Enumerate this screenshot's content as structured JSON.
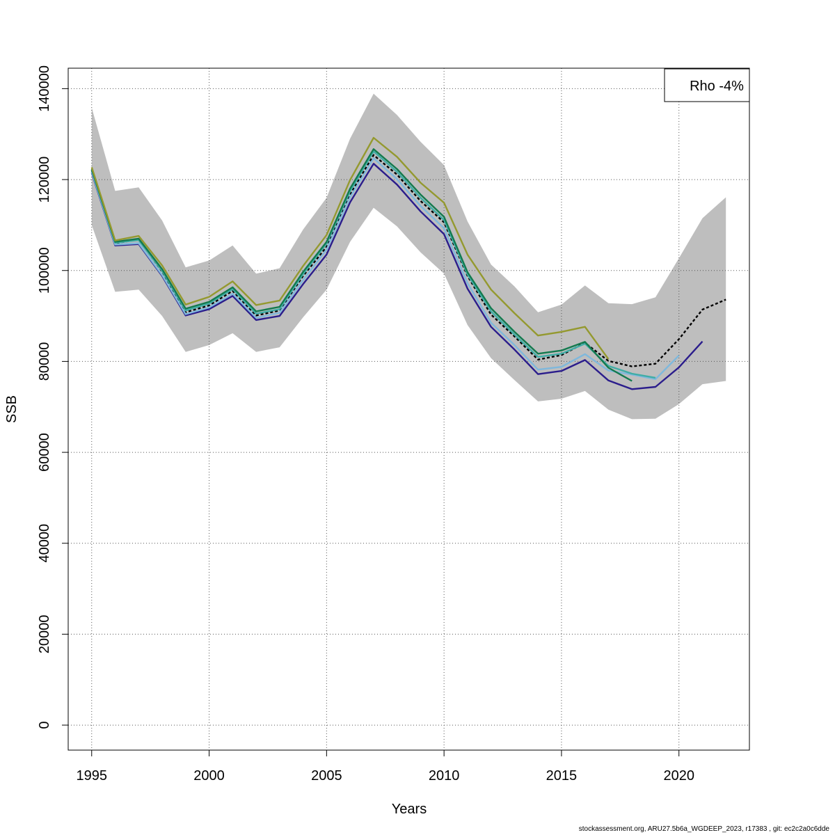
{
  "footer": "stockassessment.org, ARU27.5b6a_WGDEEP_2023, r17383 , git: ec2c2a0c6dde",
  "chart_data": {
    "type": "line",
    "xlabel": "Years",
    "ylabel": "SSB",
    "xlim": [
      1994,
      2023
    ],
    "ylim": [
      -5500,
      144500
    ],
    "x_ticks": [
      1995,
      2000,
      2005,
      2010,
      2015,
      2020
    ],
    "y_ticks": [
      0,
      20000,
      40000,
      60000,
      80000,
      100000,
      120000,
      140000
    ],
    "grid": true,
    "legend": {
      "position": "top-right",
      "text": "Rho -4%"
    },
    "band": {
      "x": [
        1995,
        1996,
        1997,
        1998,
        1999,
        2000,
        2001,
        2002,
        2003,
        2004,
        2005,
        2006,
        2007,
        2008,
        2009,
        2010,
        2011,
        2012,
        2013,
        2014,
        2015,
        2016,
        2017,
        2018,
        2019,
        2020,
        2021,
        2022
      ],
      "upper": [
        135800,
        117500,
        118300,
        111000,
        100700,
        102200,
        105500,
        99300,
        100500,
        109000,
        116000,
        129000,
        138900,
        134200,
        128300,
        123200,
        110800,
        101300,
        96500,
        90800,
        92500,
        96700,
        92800,
        92600,
        94100,
        102700,
        111500,
        116100
      ],
      "lower": [
        110000,
        95300,
        95800,
        90000,
        82100,
        83600,
        86200,
        82100,
        83100,
        89700,
        95800,
        106300,
        113800,
        109700,
        104000,
        99300,
        88000,
        80700,
        75900,
        71200,
        71800,
        73500,
        69400,
        67300,
        67400,
        70600,
        75000,
        75700
      ],
      "color": "#bebebe"
    },
    "series": [
      {
        "color": "#000000",
        "dashed": true,
        "x": [
          1995,
          1996,
          1997,
          1998,
          1999,
          2000,
          2001,
          2002,
          2003,
          2004,
          2005,
          2006,
          2007,
          2008,
          2009,
          2010,
          2011,
          2012,
          2013,
          2014,
          2015,
          2016,
          2017,
          2018,
          2019,
          2020,
          2021,
          2022
        ],
        "y": [
          122000,
          106000,
          106800,
          99800,
          90800,
          92300,
          95500,
          90100,
          91200,
          98800,
          105200,
          116700,
          125400,
          121100,
          115300,
          110600,
          98800,
          90300,
          85500,
          80400,
          81400,
          84100,
          80100,
          78900,
          79500,
          84900,
          91400,
          93600
        ]
      },
      {
        "color": "#2b1d8c",
        "dashed": false,
        "x": [
          1995,
          1996,
          1997,
          1998,
          1999,
          2000,
          2001,
          2002,
          2003,
          2004,
          2005,
          2006,
          2007,
          2008,
          2009,
          2010,
          2011,
          2012,
          2013,
          2014,
          2015,
          2016,
          2017,
          2018,
          2019,
          2020,
          2021
        ],
        "y": [
          121500,
          105500,
          105800,
          98800,
          90100,
          91500,
          94400,
          89100,
          90000,
          97000,
          103500,
          115000,
          123500,
          118900,
          113000,
          108000,
          96000,
          87600,
          82600,
          77200,
          77900,
          80300,
          75800,
          73900,
          74400,
          78700,
          84400
        ]
      },
      {
        "color": "#7fb8dc",
        "dashed": false,
        "x": [
          1995,
          1996,
          1997,
          1998,
          1999,
          2000,
          2001,
          2002,
          2003,
          2004,
          2005,
          2006,
          2007,
          2008,
          2009,
          2010,
          2011,
          2012,
          2013,
          2014,
          2015,
          2016,
          2017,
          2018,
          2019,
          2020
        ],
        "y": [
          121700,
          105700,
          106000,
          99000,
          90400,
          91900,
          94900,
          89600,
          90700,
          97900,
          104600,
          116100,
          124700,
          120100,
          114200,
          109300,
          97200,
          88500,
          83600,
          78200,
          78800,
          81600,
          78000,
          77100,
          76100,
          81300
        ]
      },
      {
        "color": "#3fada6",
        "dashed": false,
        "x": [
          1995,
          1996,
          1997,
          1998,
          1999,
          2000,
          2001,
          2002,
          2003,
          2004,
          2005,
          2006,
          2007,
          2008,
          2009,
          2010,
          2011,
          2012,
          2013,
          2014,
          2015,
          2016,
          2017,
          2018,
          2019
        ],
        "y": [
          122100,
          106100,
          106700,
          99900,
          91200,
          92700,
          95900,
          90500,
          91500,
          99200,
          105900,
          117400,
          126200,
          121700,
          116000,
          111100,
          99100,
          91000,
          85900,
          81000,
          81700,
          83900,
          79000,
          77300,
          76400
        ]
      },
      {
        "color": "#137a4e",
        "dashed": false,
        "x": [
          1995,
          1996,
          1997,
          1998,
          1999,
          2000,
          2001,
          2002,
          2003,
          2004,
          2005,
          2006,
          2007,
          2008,
          2009,
          2010,
          2011,
          2012,
          2013,
          2014,
          2015,
          2016,
          2017,
          2018
        ],
        "y": [
          122300,
          106300,
          107000,
          100300,
          91600,
          93100,
          96300,
          91000,
          92000,
          99700,
          106300,
          118000,
          126700,
          122300,
          116700,
          111800,
          99600,
          91700,
          86500,
          81700,
          82400,
          84300,
          78600,
          75700
        ]
      },
      {
        "color": "#94992f",
        "dashed": false,
        "x": [
          1995,
          1996,
          1997,
          1998,
          1999,
          2000,
          2001,
          2002,
          2003,
          2004,
          2005,
          2006,
          2007,
          2008,
          2009,
          2010,
          2011,
          2012,
          2013,
          2014,
          2015,
          2016,
          2017
        ],
        "y": [
          122700,
          106600,
          107600,
          101100,
          92500,
          94200,
          97600,
          92400,
          93400,
          101000,
          107800,
          119900,
          129200,
          125000,
          119300,
          114900,
          103500,
          95800,
          90600,
          85700,
          86500,
          87600,
          80500
        ]
      }
    ]
  }
}
